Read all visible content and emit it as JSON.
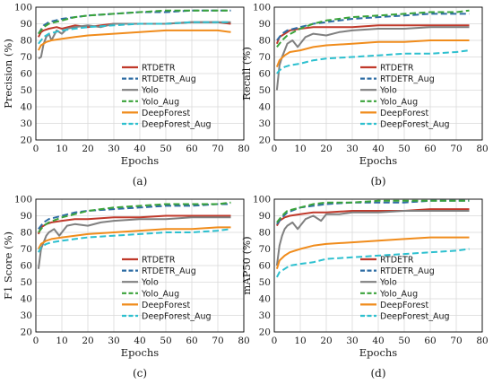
{
  "legend_labels": [
    "RTDETR",
    "RTDETR_Aug",
    "Yolo",
    "Yolo_Aug",
    "DeepForest",
    "DeepForest_Aug"
  ],
  "series_styles": [
    {
      "name": "RTDETR",
      "color": "#c0392b",
      "dash": "solid"
    },
    {
      "name": "RTDETR_Aug",
      "color": "#2e6da4",
      "dash": "dashed"
    },
    {
      "name": "Yolo",
      "color": "#808080",
      "dash": "solid"
    },
    {
      "name": "Yolo_Aug",
      "color": "#3aa33a",
      "dash": "dashed"
    },
    {
      "name": "DeepForest",
      "color": "#f08c1c",
      "dash": "solid"
    },
    {
      "name": "DeepForest_Aug",
      "color": "#2dc0cf",
      "dash": "dashed"
    }
  ],
  "chart_data": [
    {
      "type": "line",
      "panel_label": "(a)",
      "xlabel": "Epochs",
      "ylabel": "Precision (%)",
      "xlim": [
        0,
        80
      ],
      "ylim": [
        20,
        100
      ],
      "xticks": [
        0,
        10,
        20,
        30,
        40,
        50,
        60,
        70,
        80
      ],
      "yticks": [
        20,
        30,
        40,
        50,
        60,
        70,
        80,
        90,
        100
      ],
      "grid": true,
      "legend_position": "lower-right",
      "series": [
        {
          "name": "RTDETR",
          "x": [
            1,
            2,
            3,
            5,
            8,
            10,
            15,
            20,
            25,
            30,
            40,
            50,
            60,
            70,
            75
          ],
          "y": [
            82,
            85,
            86,
            87,
            88,
            87,
            89,
            88,
            89,
            90,
            90,
            90,
            91,
            91,
            90
          ]
        },
        {
          "name": "RTDETR_Aug",
          "x": [
            1,
            3,
            5,
            10,
            15,
            20,
            30,
            40,
            50,
            60,
            70,
            75
          ],
          "y": [
            84,
            89,
            91,
            93,
            94,
            95,
            96,
            97,
            97,
            98,
            98,
            98
          ]
        },
        {
          "name": "Yolo",
          "x": [
            1,
            2,
            3,
            4,
            5,
            6,
            8,
            10,
            12,
            15,
            20,
            25,
            30,
            40,
            50,
            60,
            70,
            75
          ],
          "y": [
            69,
            70,
            78,
            82,
            84,
            80,
            86,
            84,
            87,
            88,
            89,
            88,
            90,
            90,
            90,
            91,
            91,
            91
          ]
        },
        {
          "name": "Yolo_Aug",
          "x": [
            1,
            3,
            5,
            10,
            15,
            20,
            30,
            40,
            50,
            60,
            70,
            75
          ],
          "y": [
            84,
            88,
            90,
            92,
            94,
            95,
            96,
            97,
            98,
            98,
            98,
            98
          ]
        },
        {
          "name": "DeepForest",
          "x": [
            1,
            2,
            4,
            6,
            10,
            15,
            20,
            30,
            40,
            50,
            60,
            70,
            75
          ],
          "y": [
            74,
            77,
            79,
            80,
            81,
            82,
            83,
            84,
            85,
            86,
            86,
            86,
            85
          ]
        },
        {
          "name": "DeepForest_Aug",
          "x": [
            1,
            3,
            5,
            10,
            15,
            20,
            30,
            40,
            50,
            60,
            70,
            75
          ],
          "y": [
            78,
            82,
            84,
            86,
            87,
            88,
            89,
            90,
            90,
            91,
            91,
            91
          ]
        }
      ]
    },
    {
      "type": "line",
      "panel_label": "(b)",
      "xlabel": "Epochs",
      "ylabel": "Recall (%)",
      "xlim": [
        0,
        80
      ],
      "ylim": [
        20,
        100
      ],
      "xticks": [
        0,
        10,
        20,
        30,
        40,
        50,
        60,
        70,
        80
      ],
      "yticks": [
        20,
        30,
        40,
        50,
        60,
        70,
        80,
        90,
        100
      ],
      "grid": true,
      "legend_position": "lower-right",
      "series": [
        {
          "name": "RTDETR",
          "x": [
            1,
            2,
            4,
            6,
            10,
            15,
            20,
            30,
            40,
            50,
            60,
            70,
            75
          ],
          "y": [
            78,
            82,
            84,
            86,
            87,
            88,
            88,
            88,
            89,
            89,
            89,
            89,
            89
          ]
        },
        {
          "name": "RTDETR_Aug",
          "x": [
            1,
            3,
            5,
            10,
            15,
            20,
            30,
            40,
            50,
            60,
            70,
            75
          ],
          "y": [
            80,
            84,
            86,
            88,
            90,
            91,
            93,
            94,
            95,
            96,
            96,
            96
          ]
        },
        {
          "name": "Yolo",
          "x": [
            1,
            2,
            3,
            4,
            5,
            7,
            9,
            12,
            15,
            20,
            25,
            30,
            40,
            50,
            60,
            70,
            75
          ],
          "y": [
            50,
            65,
            70,
            74,
            78,
            80,
            76,
            82,
            84,
            83,
            85,
            86,
            87,
            87,
            88,
            88,
            88
          ]
        },
        {
          "name": "Yolo_Aug",
          "x": [
            1,
            3,
            5,
            10,
            15,
            20,
            30,
            40,
            50,
            60,
            70,
            75
          ],
          "y": [
            76,
            80,
            83,
            87,
            90,
            92,
            94,
            95,
            96,
            97,
            97,
            98
          ]
        },
        {
          "name": "DeepForest",
          "x": [
            1,
            2,
            4,
            6,
            10,
            15,
            20,
            30,
            40,
            50,
            60,
            70,
            75
          ],
          "y": [
            64,
            68,
            71,
            73,
            74,
            76,
            77,
            78,
            79,
            79,
            80,
            80,
            80
          ]
        },
        {
          "name": "DeepForest_Aug",
          "x": [
            1,
            2,
            4,
            6,
            10,
            15,
            20,
            30,
            40,
            50,
            60,
            70,
            75
          ],
          "y": [
            60,
            62,
            64,
            65,
            66,
            68,
            69,
            70,
            71,
            72,
            72,
            73,
            74
          ]
        }
      ]
    },
    {
      "type": "line",
      "panel_label": "(c)",
      "xlabel": "Epochs",
      "ylabel": "F1 Score (%)",
      "xlim": [
        0,
        80
      ],
      "ylim": [
        20,
        100
      ],
      "xticks": [
        0,
        10,
        20,
        30,
        40,
        50,
        60,
        70,
        80
      ],
      "yticks": [
        20,
        30,
        40,
        50,
        60,
        70,
        80,
        90,
        100
      ],
      "grid": true,
      "legend_position": "lower-right",
      "series": [
        {
          "name": "RTDETR",
          "x": [
            1,
            2,
            4,
            6,
            10,
            15,
            20,
            30,
            40,
            50,
            60,
            70,
            75
          ],
          "y": [
            79,
            83,
            85,
            86,
            87,
            88,
            88,
            89,
            89,
            90,
            90,
            90,
            90
          ]
        },
        {
          "name": "RTDETR_Aug",
          "x": [
            1,
            3,
            5,
            10,
            15,
            20,
            30,
            40,
            50,
            60,
            70,
            75
          ],
          "y": [
            82,
            86,
            88,
            90,
            92,
            93,
            94,
            95,
            96,
            96,
            97,
            97
          ]
        },
        {
          "name": "Yolo",
          "x": [
            1,
            2,
            3,
            4,
            5,
            7,
            9,
            12,
            15,
            20,
            25,
            30,
            40,
            50,
            60,
            70,
            75
          ],
          "y": [
            58,
            70,
            74,
            78,
            80,
            82,
            78,
            84,
            85,
            84,
            86,
            87,
            88,
            88,
            89,
            89,
            89
          ]
        },
        {
          "name": "Yolo_Aug",
          "x": [
            1,
            3,
            5,
            10,
            15,
            20,
            30,
            40,
            50,
            60,
            70,
            75
          ],
          "y": [
            80,
            84,
            86,
            89,
            91,
            93,
            95,
            96,
            97,
            97,
            97,
            98
          ]
        },
        {
          "name": "DeepForest",
          "x": [
            1,
            2,
            4,
            6,
            10,
            15,
            20,
            30,
            40,
            50,
            60,
            70,
            75
          ],
          "y": [
            70,
            73,
            75,
            76,
            77,
            78,
            79,
            80,
            81,
            82,
            82,
            83,
            83
          ]
        },
        {
          "name": "DeepForest_Aug",
          "x": [
            1,
            2,
            4,
            6,
            10,
            15,
            20,
            30,
            40,
            50,
            60,
            70,
            75
          ],
          "y": [
            68,
            71,
            73,
            74,
            75,
            76,
            77,
            78,
            79,
            80,
            80,
            81,
            82
          ]
        }
      ]
    },
    {
      "type": "line",
      "panel_label": "(d)",
      "xlabel": "Epochs",
      "ylabel": "mAP50 (%)",
      "xlim": [
        0,
        80
      ],
      "ylim": [
        20,
        100
      ],
      "xticks": [
        0,
        10,
        20,
        30,
        40,
        50,
        60,
        70,
        80
      ],
      "yticks": [
        20,
        30,
        40,
        50,
        60,
        70,
        80,
        90,
        100
      ],
      "grid": true,
      "legend_position": "lower-right",
      "series": [
        {
          "name": "RTDETR",
          "x": [
            1,
            2,
            4,
            6,
            10,
            15,
            20,
            30,
            40,
            50,
            60,
            70,
            75
          ],
          "y": [
            84,
            87,
            89,
            90,
            91,
            92,
            92,
            93,
            93,
            93,
            94,
            94,
            94
          ]
        },
        {
          "name": "RTDETR_Aug",
          "x": [
            1,
            3,
            5,
            10,
            15,
            20,
            30,
            40,
            50,
            60,
            70,
            75
          ],
          "y": [
            85,
            89,
            92,
            95,
            96,
            97,
            98,
            98,
            98,
            99,
            99,
            99
          ]
        },
        {
          "name": "Yolo",
          "x": [
            1,
            2,
            3,
            4,
            5,
            7,
            9,
            12,
            15,
            18,
            20,
            25,
            30,
            40,
            50,
            60,
            70,
            75
          ],
          "y": [
            60,
            72,
            78,
            82,
            84,
            86,
            82,
            88,
            90,
            87,
            91,
            91,
            92,
            92,
            93,
            93,
            93,
            93
          ]
        },
        {
          "name": "Yolo_Aug",
          "x": [
            1,
            3,
            5,
            10,
            15,
            20,
            30,
            40,
            50,
            60,
            70,
            75
          ],
          "y": [
            86,
            90,
            93,
            95,
            97,
            98,
            98,
            99,
            99,
            99,
            99,
            99
          ]
        },
        {
          "name": "DeepForest",
          "x": [
            1,
            2,
            4,
            6,
            10,
            15,
            20,
            30,
            40,
            50,
            60,
            70,
            75
          ],
          "y": [
            58,
            63,
            66,
            68,
            70,
            72,
            73,
            74,
            75,
            76,
            77,
            77,
            77
          ]
        },
        {
          "name": "DeepForest_Aug",
          "x": [
            1,
            2,
            4,
            6,
            10,
            15,
            20,
            30,
            40,
            50,
            60,
            70,
            75
          ],
          "y": [
            53,
            56,
            58,
            60,
            61,
            62,
            64,
            65,
            66,
            67,
            68,
            69,
            70
          ]
        }
      ]
    }
  ]
}
